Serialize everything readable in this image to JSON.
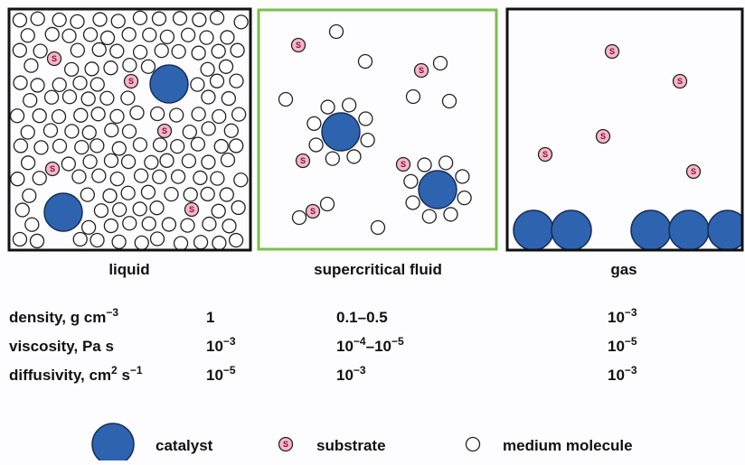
{
  "panels": [
    {
      "label": "liquid"
    },
    {
      "label": "supercritical fluid"
    },
    {
      "label": "gas"
    }
  ],
  "substrate_symbol": "S",
  "table": {
    "rows": [
      {
        "label": [
          "density, g cm",
          "−3"
        ],
        "cells": [
          [
            "1"
          ],
          [
            "0.1–0.5"
          ],
          [
            "10",
            "−3"
          ]
        ]
      },
      {
        "label": [
          "viscosity, Pa s"
        ],
        "cells": [
          [
            "10",
            "−3"
          ],
          [
            "10",
            "−4",
            "–10",
            "−5"
          ],
          [
            "10",
            "−5"
          ]
        ]
      },
      {
        "label": [
          "diffusivity, cm",
          "2",
          " s",
          "−1"
        ],
        "cells": [
          [
            "10",
            "−5"
          ],
          [
            "10",
            "−3"
          ],
          [
            "10",
            "−3"
          ]
        ]
      }
    ]
  },
  "legend": {
    "items": [
      "catalyst",
      "substrate",
      "medium molecule"
    ]
  }
}
